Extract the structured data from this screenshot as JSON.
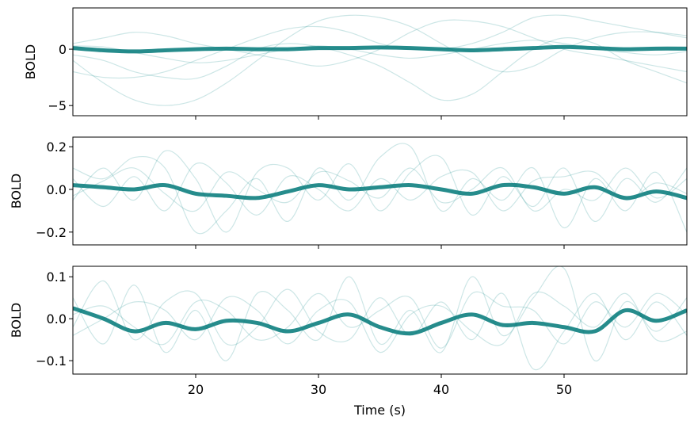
{
  "chart_data": [
    {
      "type": "line",
      "ylabel": "BOLD",
      "x": [
        10,
        12.5,
        15,
        17.5,
        20,
        22.5,
        25,
        27.5,
        30,
        32.5,
        35,
        37.5,
        40,
        42.5,
        45,
        47.5,
        50,
        52.5,
        55,
        57.5,
        60
      ],
      "xlim": [
        10,
        60
      ],
      "ylim": [
        -5.9,
        3.66
      ],
      "yticks": [
        {
          "value": -5,
          "label": "−5"
        },
        0
      ],
      "series": [
        {
          "color": "rgba(0,128,128,0.2)",
          "linewidth": 1.2,
          "values": [
            -1,
            -3,
            -4.5,
            -5,
            -4.5,
            -3,
            -1,
            1,
            2.5,
            3,
            2.8,
            2,
            0.5,
            -1,
            -2,
            -1.5,
            0,
            1,
            1.5,
            1.5,
            1.2
          ]
        },
        {
          "color": "rgba(0,128,128,0.2)",
          "linewidth": 1.2,
          "values": [
            -0.5,
            -1,
            -2,
            -2.5,
            -2.6,
            -1.5,
            0,
            0.5,
            0.2,
            -0.5,
            -1.5,
            -3,
            -4.5,
            -4,
            -2,
            0,
            1,
            0.5,
            -1,
            -2,
            -3
          ]
        },
        {
          "color": "rgba(0,128,128,0.2)",
          "linewidth": 1.2,
          "values": [
            0.5,
            1,
            1.5,
            1.2,
            0.5,
            0,
            -0.5,
            -1,
            -1.5,
            -1,
            0,
            1.5,
            2.5,
            2.5,
            2,
            1,
            0,
            -0.5,
            -1,
            -1.5,
            -2
          ]
        },
        {
          "color": "rgba(0,128,128,0.2)",
          "linewidth": 1.2,
          "values": [
            -2,
            -2.5,
            -2.5,
            -2,
            -1,
            0,
            1,
            1.8,
            2,
            1.5,
            0.5,
            0,
            0,
            0.5,
            1.5,
            2.8,
            3,
            2.5,
            2,
            1.5,
            1
          ]
        },
        {
          "color": "rgba(0,128,128,0.2)",
          "linewidth": 1.2,
          "values": [
            0.3,
            0.2,
            -0.3,
            -0.8,
            -1.2,
            -1,
            -0.5,
            0,
            0.3,
            0,
            -0.5,
            -0.8,
            -0.5,
            0,
            0.5,
            0.8,
            0.5,
            0,
            -0.3,
            -0.5,
            -0.2
          ]
        },
        {
          "color": "rgba(0,120,120,0.85)",
          "linewidth": 5,
          "values": [
            0.1,
            -0.1,
            -0.2,
            -0.1,
            0,
            0.05,
            0,
            0,
            0.1,
            0.1,
            0.15,
            0.1,
            0,
            -0.1,
            0,
            0.1,
            0.2,
            0.1,
            0,
            0.05,
            0.05
          ]
        }
      ]
    },
    {
      "type": "line",
      "ylabel": "BOLD",
      "x": [
        10,
        12.5,
        15,
        17.5,
        20,
        22.5,
        25,
        27.5,
        30,
        32.5,
        35,
        37.5,
        40,
        42.5,
        45,
        47.5,
        50,
        52.5,
        55,
        57.5,
        60
      ],
      "xlim": [
        10,
        60
      ],
      "ylim": [
        -0.26,
        0.245
      ],
      "yticks": [
        {
          "value": -0.2,
          "label": "−0.2"
        },
        {
          "value": 0,
          "label": "0.0"
        },
        0.2
      ],
      "series": [
        {
          "color": "rgba(0,128,128,0.2)",
          "linewidth": 1.2,
          "values": [
            0.1,
            0.05,
            0.15,
            0.1,
            -0.2,
            -0.1,
            0.05,
            -0.15,
            0.1,
            -0.05,
            0.15,
            0.2,
            -0.1,
            0.05,
            -0.05,
            0.1,
            -0.18,
            0.05,
            -0.1,
            0.08,
            -0.2
          ]
        },
        {
          "color": "rgba(0,128,128,0.2)",
          "linewidth": 1.2,
          "values": [
            -0.05,
            0.1,
            -0.05,
            0.18,
            0.05,
            -0.2,
            0.08,
            0.1,
            -0.05,
            0.12,
            -0.1,
            0.08,
            0.15,
            -0.12,
            0.06,
            -0.08,
            0.1,
            -0.15,
            0.05,
            -0.06,
            0.1
          ]
        },
        {
          "color": "rgba(0,128,128,0.2)",
          "linewidth": 1.2,
          "values": [
            0.05,
            -0.08,
            0.06,
            -0.1,
            0.12,
            0.03,
            -0.12,
            0.06,
            0,
            -0.1,
            0.05,
            -0.05,
            0.06,
            0.08,
            -0.1,
            0.04,
            0.06,
            0.08,
            -0.05,
            0.03,
            -0.02
          ]
        },
        {
          "color": "rgba(0,128,128,0.2)",
          "linewidth": 1.2,
          "values": [
            -0.03,
            0.04,
            0.1,
            -0.02,
            -0.1,
            0.08,
            0,
            -0.06,
            0.08,
            0.04,
            -0.04,
            0.1,
            -0.06,
            0,
            0.1,
            -0.1,
            0,
            -0.05,
            0.1,
            -0.04,
            0.05
          ]
        },
        {
          "color": "rgba(0,120,120,0.85)",
          "linewidth": 5,
          "values": [
            0.02,
            0.01,
            0,
            0.02,
            -0.02,
            -0.03,
            -0.04,
            -0.01,
            0.02,
            0,
            0.01,
            0.02,
            0,
            -0.02,
            0.02,
            0.01,
            -0.02,
            0.01,
            -0.04,
            -0.01,
            -0.04
          ]
        }
      ]
    },
    {
      "type": "line",
      "ylabel": "BOLD",
      "xlabel": "Time (s)",
      "x": [
        10,
        12.5,
        15,
        17.5,
        20,
        22.5,
        25,
        27.5,
        30,
        32.5,
        35,
        37.5,
        40,
        42.5,
        45,
        47.5,
        50,
        52.5,
        55,
        57.5,
        60
      ],
      "xlim": [
        10,
        60
      ],
      "ylim": [
        -0.132,
        0.125
      ],
      "xticks": [
        20,
        30,
        40,
        50
      ],
      "yticks": [
        {
          "value": -0.1,
          "label": "−0.1"
        },
        {
          "value": 0,
          "label": "0.0"
        },
        0.1
      ],
      "series": [
        {
          "color": "rgba(0,128,128,0.2)",
          "linewidth": 1.2,
          "values": [
            0.05,
            -0.06,
            0.08,
            -0.08,
            0.02,
            -0.1,
            0.06,
            0.02,
            -0.05,
            0.1,
            -0.06,
            0.02,
            -0.08,
            0.1,
            -0.04,
            0.05,
            0.12,
            -0.1,
            0.04,
            -0.03,
            0.05
          ]
        },
        {
          "color": "rgba(0,128,128,0.2)",
          "linewidth": 1.2,
          "values": [
            -0.02,
            0.09,
            -0.05,
            0.04,
            0.06,
            -0.06,
            -0.02,
            0.07,
            -0.03,
            -0.05,
            0.05,
            -0.04,
            0.04,
            -0.05,
            0.06,
            -0.12,
            -0.03,
            0.06,
            -0.05,
            0.04,
            -0.04
          ]
        },
        {
          "color": "rgba(0,128,128,0.2)",
          "linewidth": 1.2,
          "values": [
            0.01,
            0.03,
            -0.02,
            -0.06,
            0.04,
            0.02,
            -0.05,
            -0.02,
            0.06,
            -0.02,
            0.02,
            0.05,
            -0.07,
            0.06,
            0.03,
            0.02,
            -0.06,
            0.04,
            -0.02,
            0.06,
            0.01
          ]
        },
        {
          "color": "rgba(0,128,128,0.2)",
          "linewidth": 1.2,
          "values": [
            -0.04,
            0,
            0.04,
            0.02,
            -0.05,
            0.05,
            0.02,
            -0.06,
            0.02,
            0.04,
            -0.08,
            0.01,
            0.03,
            -0.03,
            -0.06,
            0.06,
            0.03,
            -0.02,
            0.06,
            -0.05,
            -0.03
          ]
        },
        {
          "color": "rgba(0,120,120,0.85)",
          "linewidth": 5,
          "values": [
            0.025,
            0,
            -0.03,
            -0.01,
            -0.025,
            -0.005,
            -0.01,
            -0.03,
            -0.01,
            0.01,
            -0.02,
            -0.035,
            -0.01,
            0.01,
            -0.015,
            -0.01,
            -0.02,
            -0.03,
            0.02,
            -0.005,
            0.02
          ]
        }
      ]
    }
  ]
}
